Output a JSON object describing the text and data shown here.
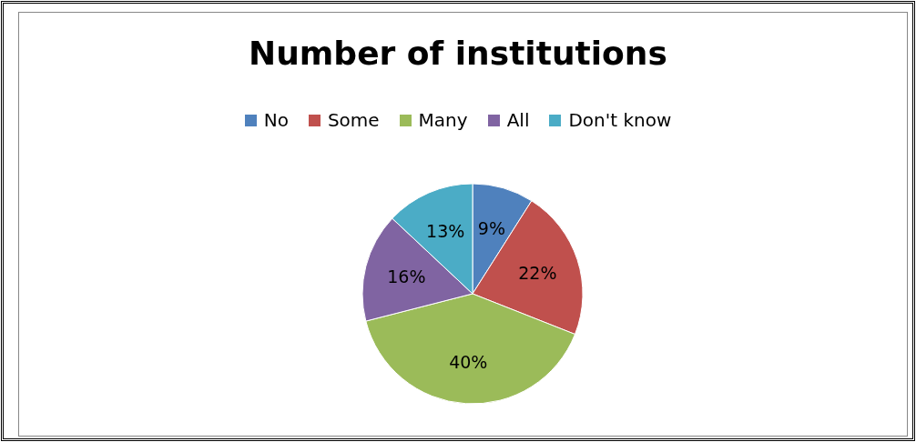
{
  "chart_data": {
    "type": "pie",
    "title": "Number of institutions",
    "categories": [
      "No",
      "Some",
      "Many",
      "All",
      "Don't know"
    ],
    "values": [
      9,
      22,
      40,
      16,
      13
    ],
    "value_labels": [
      "9%",
      "22%",
      "40%",
      "16%",
      "13%"
    ],
    "colors": [
      "#4f81bd",
      "#c0504d",
      "#9bbb59",
      "#8064a2",
      "#4bacc6"
    ],
    "legend": "top"
  }
}
